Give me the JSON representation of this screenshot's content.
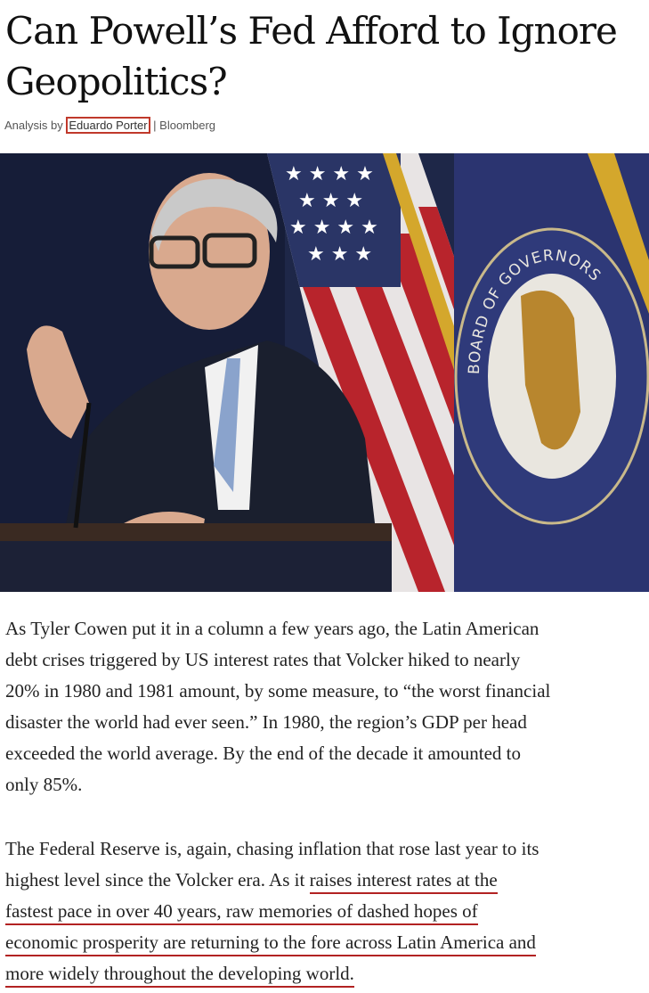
{
  "article": {
    "title_lines": [
      "Can Powell’s Fed Afford to Ignore",
      "Geopolitics?"
    ],
    "byline_prefix": "Analysis by ",
    "author": "Eduardo Porter",
    "source": "| Bloomberg",
    "photo_seal_text": "BOARD OF GOVERNORS",
    "paragraph1": [
      "As Tyler Cowen put it in a column a few years ago, the Latin American",
      "debt crises triggered by US interest rates that Volcker hiked to nearly",
      "20% in 1980 and 1981 amount, by some measure, to “the worst financial",
      "disaster the world had ever seen.” In 1980, the region’s GDP per head",
      "exceeded the world average. By the end of the decade it amounted to",
      "only 85%."
    ],
    "paragraph2": {
      "line1": "The Federal Reserve is, again, chasing inflation that rose last year to its",
      "line2_plain": "highest level since the Volcker era. As it ",
      "line2_highlight": "raises interest rates at the",
      "line3": "fastest pace in over 40 years, raw memories of dashed hopes of",
      "line4": "economic prosperity are returning to the fore across Latin America and",
      "line5": "more widely throughout the developing world."
    },
    "highlight_color": "#b22222"
  }
}
